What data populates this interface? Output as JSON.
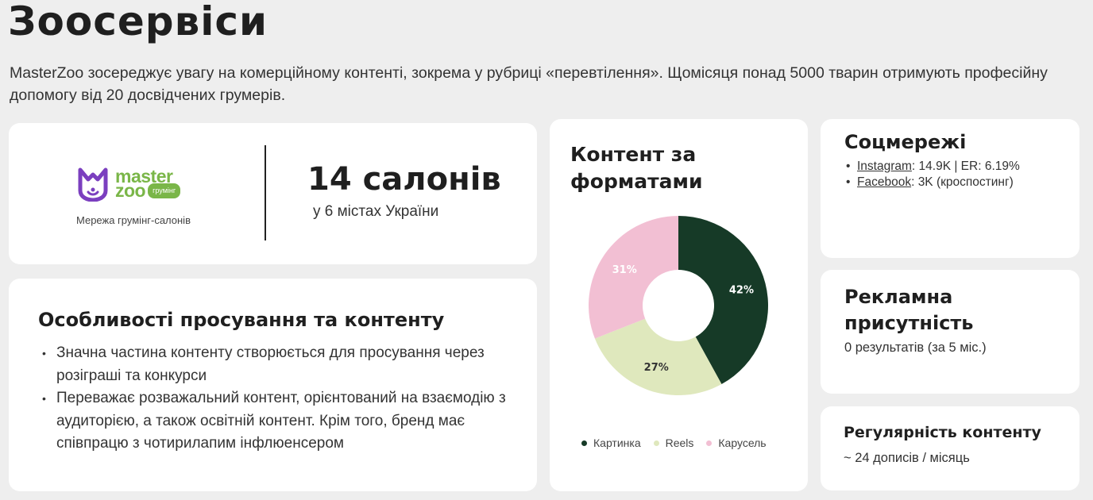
{
  "page": {
    "title": "Зоосервіси",
    "intro": "MasterZoo зосереджує увагу на комерційному контенті, зокрема у рубриці «перевтілення». Щомісяця понад 5000 тварин отримують професійну допомогу від 20 досвідчених грумерів."
  },
  "brand": {
    "logo_master": "master",
    "logo_zoo": "zoo",
    "logo_badge": "грумінг",
    "caption": "Мережа грумінг-салонів",
    "salons": "14 салонів",
    "salons_sub": "у 6 містах України",
    "colors": {
      "logo_green": "#7ab648",
      "logo_purple": "#7b3fbf"
    }
  },
  "features": {
    "title": "Особливості просування та контенту",
    "items": [
      "Значна частина контенту створюється для просування через розіграші та конкурси",
      "Переважає розважальний контент, орієнтований на взаємодію з аудиторією, а також освітній контент. Крім того, бренд має співпрацю з чотирилапим інфлюенсером"
    ]
  },
  "chart": {
    "title": "Контент за форматами"
  },
  "chart_data": {
    "type": "pie",
    "donut": true,
    "categories": [
      "Картинка",
      "Reels",
      "Карусель"
    ],
    "values": [
      42,
      27,
      31
    ],
    "labels": [
      "42%",
      "27%",
      "31%"
    ],
    "colors": [
      "#163a27",
      "#dfe8bd",
      "#f2bfd3"
    ],
    "label_colors": [
      "#ffffff",
      "#333333",
      "#ffffff"
    ],
    "legend_position": "bottom"
  },
  "social": {
    "title": "Соцмережі",
    "items": [
      {
        "link": "Instagram",
        "value": ": 14.9K | ER: 6.19%"
      },
      {
        "link": "Facebook",
        "value": ": 3K (кроспостинг)"
      }
    ]
  },
  "ads": {
    "title": "Рекламна присутність",
    "text": "0 результатів (за 5 міс.)"
  },
  "regularity": {
    "title": "Регулярність контенту",
    "text": "~ 24 дописів / місяць"
  }
}
